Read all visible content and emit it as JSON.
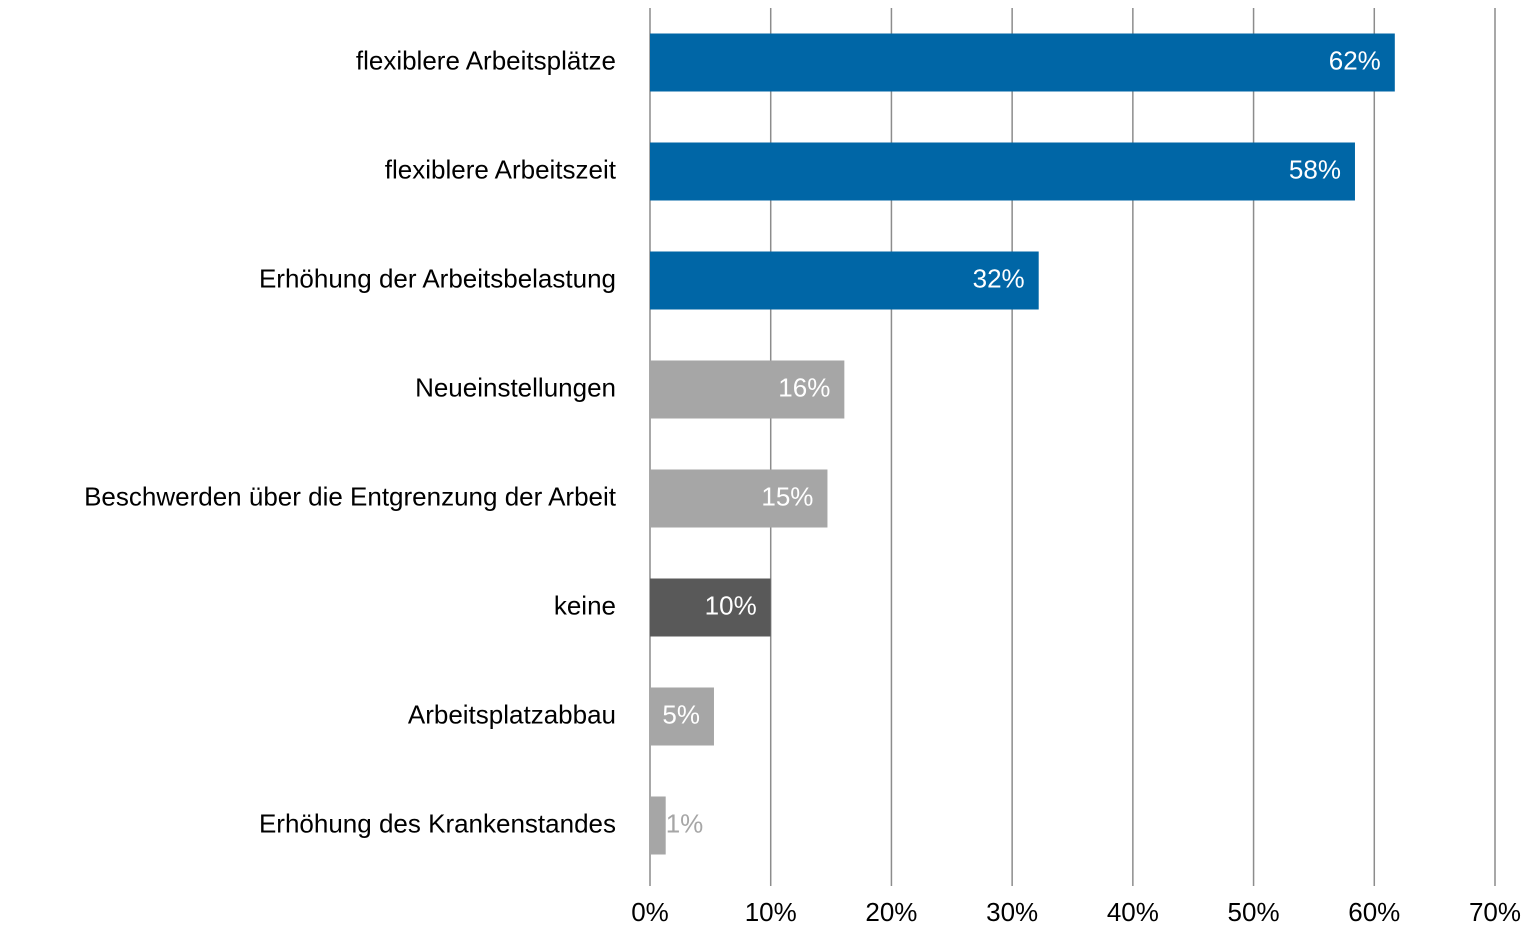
{
  "chart_data": {
    "type": "bar",
    "orientation": "horizontal",
    "categories": [
      "flexiblere Arbeitsplätze",
      "flexiblere Arbeitszeit",
      "Erhöhung der Arbeitsbelastung",
      "Neueinstellungen",
      "Beschwerden über die Entgrenzung der Arbeit",
      "keine",
      "Arbeitsplatzabbau",
      "Erhöhung des Krankenstandes"
    ],
    "values": [
      61.7,
      58.4,
      32.2,
      16.1,
      14.7,
      10.0,
      5.3,
      1.3
    ],
    "value_labels": [
      "62%",
      "58%",
      "32%",
      "16%",
      "15%",
      "10%",
      "5%",
      "1%"
    ],
    "colors": [
      "#0066a6",
      "#0066a6",
      "#0066a6",
      "#a6a6a6",
      "#a6a6a6",
      "#595959",
      "#a6a6a6",
      "#a6a6a6"
    ],
    "xlim": [
      0,
      70
    ],
    "xticks": [
      {
        "value": 0,
        "label": "0%"
      },
      {
        "value": 10,
        "label": "10%"
      },
      {
        "value": 20,
        "label": "20%"
      },
      {
        "value": 30,
        "label": "30%"
      },
      {
        "value": 40,
        "label": "40%"
      },
      {
        "value": 50,
        "label": "50%"
      },
      {
        "value": 60,
        "label": "60%"
      },
      {
        "value": 70,
        "label": "70%"
      }
    ],
    "grid": true
  }
}
